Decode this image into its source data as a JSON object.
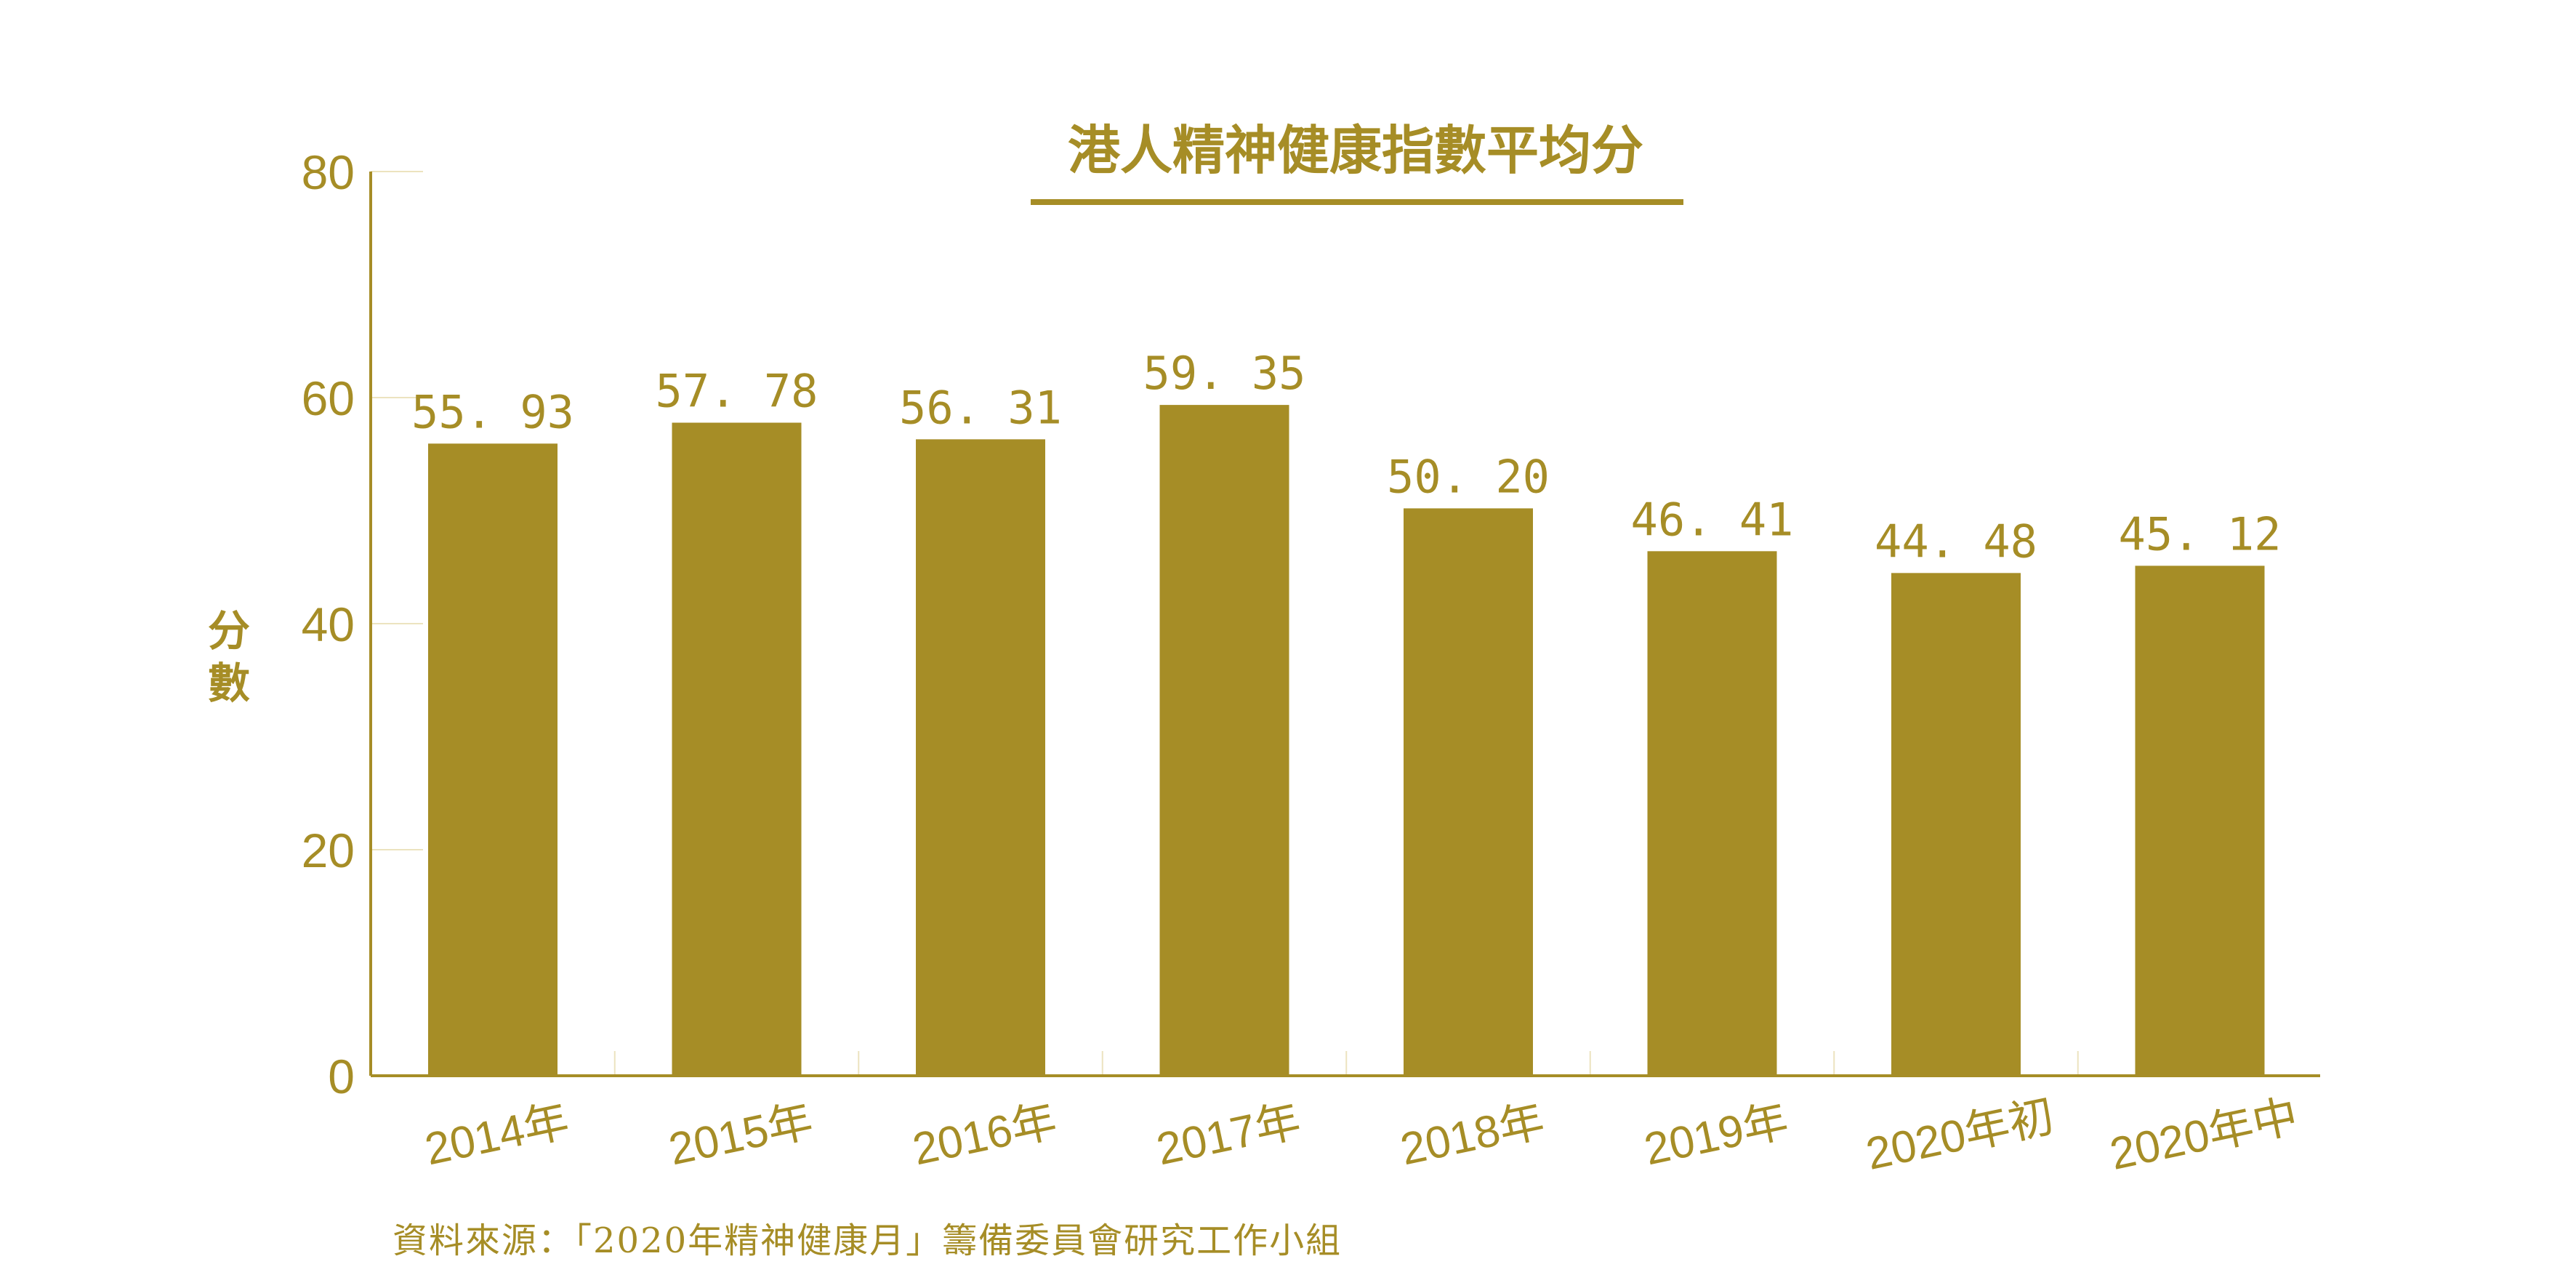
{
  "chart_data": {
    "type": "bar",
    "title": "港人精神健康指數平均分",
    "xlabel": "",
    "ylabel": "分數",
    "categories": [
      "2014年",
      "2015年",
      "2016年",
      "2017年",
      "2018年",
      "2019年",
      "2020年初",
      "2020年中"
    ],
    "values": [
      55.93,
      57.78,
      56.31,
      59.35,
      50.2,
      46.41,
      44.48,
      45.12
    ],
    "value_labels": [
      "55. 93",
      "57. 78",
      "56. 31",
      "59. 35",
      "50. 20",
      "46. 41",
      "44. 48",
      "45. 12"
    ],
    "ylim": [
      0,
      80
    ],
    "yticks": [
      "0",
      "20",
      "40",
      "60",
      "80"
    ],
    "grid": false,
    "legend": "none",
    "bar_color": "#a68d26",
    "text_color": "#a68d26"
  },
  "source": "資料來源：「2020年精神健康月」籌備委員會研究工作小組"
}
